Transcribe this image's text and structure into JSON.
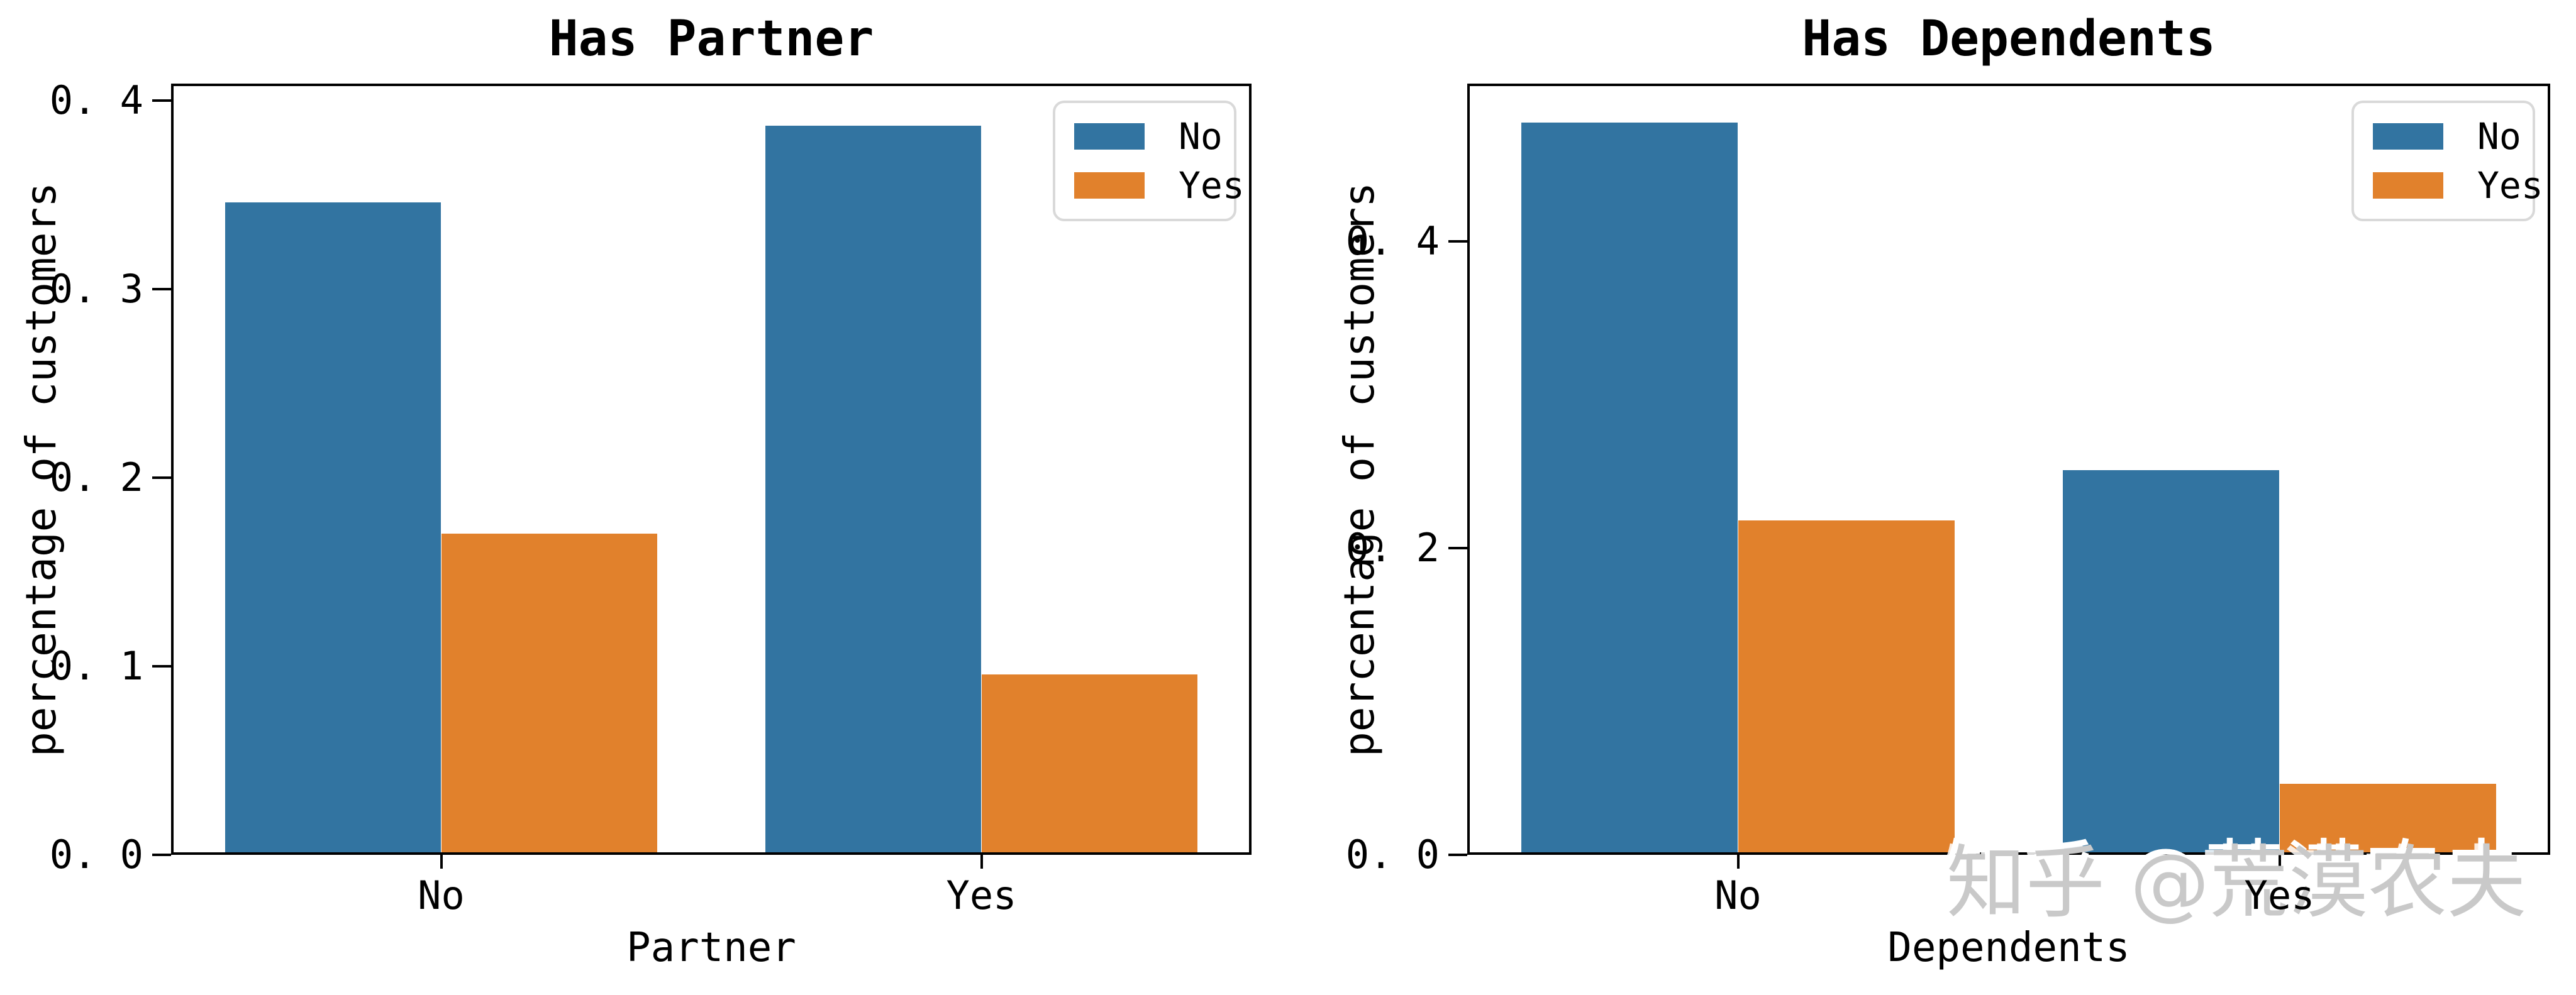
{
  "palette": {
    "series_colors": [
      "#3274a1",
      "#e1812c"
    ],
    "axis_color": "#000000",
    "legend_border": "#d9d9d9",
    "watermark_color": "#c9c9c9"
  },
  "watermark": {
    "text": "知乎 @荒漠农夫"
  },
  "chart_data": [
    {
      "type": "bar",
      "title": "Has Partner",
      "xlabel": "Partner",
      "ylabel": "percentage of customers",
      "categories": [
        "No",
        "Yes"
      ],
      "series": [
        {
          "name": "No",
          "values": [
            0.347,
            0.388
          ]
        },
        {
          "name": "Yes",
          "values": [
            0.17,
            0.095
          ]
        }
      ],
      "ylim": [
        0,
        0.409
      ],
      "yticks": {
        "values": [
          0,
          0.1,
          0.2,
          0.3,
          0.4
        ],
        "labels": [
          "0. 0",
          "0. 1",
          "0. 2",
          "0. 3",
          "0. 4"
        ]
      },
      "legend": {
        "position": "upper right",
        "entries": [
          "No",
          "Yes"
        ]
      },
      "grid": false
    },
    {
      "type": "bar",
      "title": "Has Dependents",
      "xlabel": "Dependents",
      "ylabel": "percentage of customers",
      "categories": [
        "No",
        "Yes"
      ],
      "series": [
        {
          "name": "No",
          "values": [
            0.479,
            0.251
          ]
        },
        {
          "name": "Yes",
          "values": [
            0.218,
            0.045
          ]
        }
      ],
      "ylim": [
        0,
        0.503
      ],
      "yticks": {
        "values": [
          0,
          0.2,
          0.4
        ],
        "labels": [
          "0. 0",
          "0. 2",
          "0. 4"
        ]
      },
      "legend": {
        "position": "upper right",
        "entries": [
          "No",
          "Yes"
        ]
      },
      "grid": false
    }
  ]
}
